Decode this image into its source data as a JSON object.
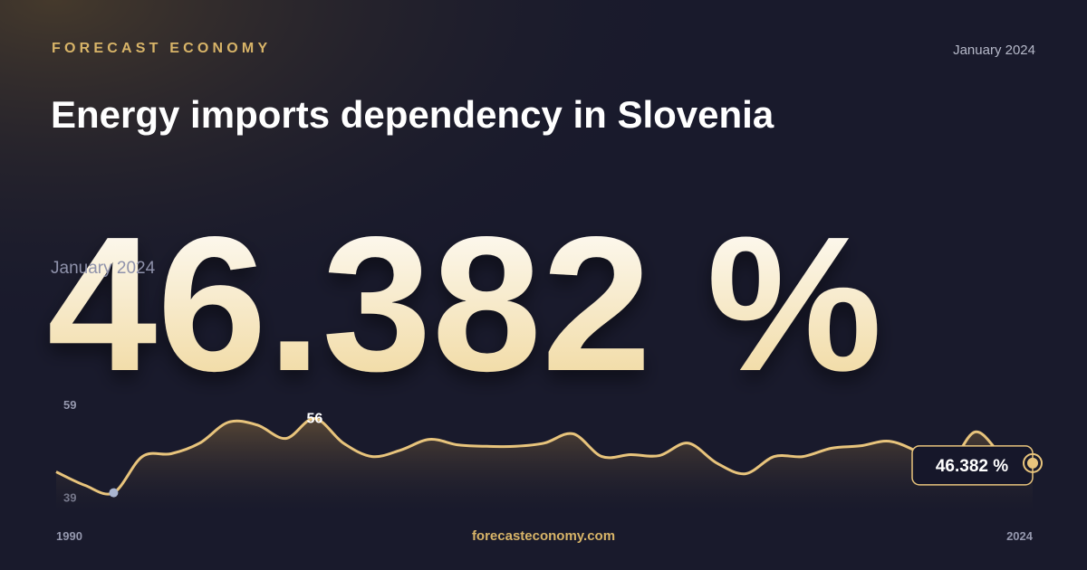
{
  "brand": "FORECAST ECONOMY",
  "date": "January 2024",
  "title": "Energy imports dependency in Slovenia",
  "headline": {
    "date": "January 2024",
    "value": 46.382,
    "label": "46.382 %"
  },
  "footer": "forecasteconomy.com",
  "chart_data": {
    "type": "line",
    "x": [
      1990,
      1991,
      1992,
      1993,
      1994,
      1995,
      1996,
      1997,
      1998,
      1999,
      2000,
      2001,
      2002,
      2003,
      2004,
      2005,
      2006,
      2007,
      2008,
      2009,
      2010,
      2011,
      2012,
      2013,
      2014,
      2015,
      2016,
      2017,
      2018,
      2019,
      2020,
      2021,
      2022,
      2023,
      2024
    ],
    "values": [
      44.5,
      41.6,
      40,
      47.8,
      48.4,
      50.7,
      55.2,
      54.6,
      51.7,
      56,
      50.7,
      47.8,
      49.2,
      51.5,
      50.3,
      50,
      50,
      50.7,
      52.7,
      47.8,
      48.2,
      48,
      50.7,
      46.4,
      44.1,
      47.8,
      47.8,
      49.6,
      50.1,
      51.1,
      48.8,
      45.3,
      53.1,
      47.8,
      46.382
    ],
    "value_labels": [
      null,
      null,
      null,
      null,
      null,
      null,
      null,
      null,
      null,
      null,
      null,
      null,
      null,
      null,
      null,
      null,
      null,
      null,
      null,
      null,
      null,
      null,
      null,
      null,
      null,
      null,
      null,
      null,
      null,
      null,
      null,
      null,
      null,
      null,
      "46.382 %"
    ],
    "color": "#e8c47c",
    "marker_color": "#a9b4d0",
    "area": true,
    "xlim": [
      1990,
      2024
    ],
    "xticks": [
      1990,
      2024
    ],
    "ylim": [
      37,
      60
    ],
    "yticks": [
      39,
      59
    ]
  }
}
